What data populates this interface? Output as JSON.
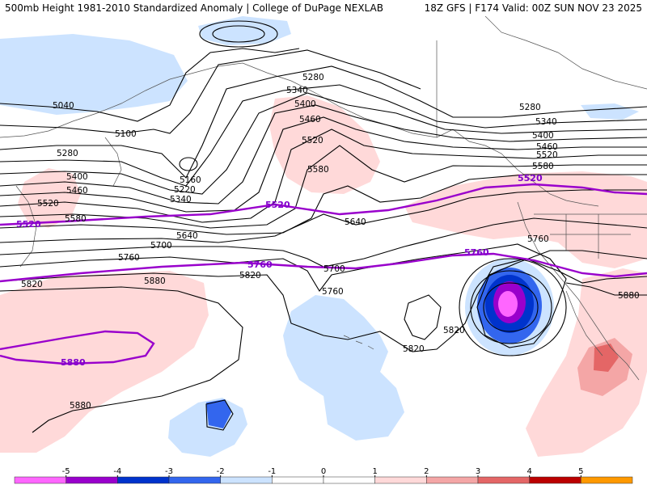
{
  "header": {
    "left": "500mb Height 1981-2010 Standardized Anomaly | College of DuPage NEXLAB",
    "right": "18Z GFS | F174 Valid: 00Z SUN NOV 23 2025"
  },
  "colors": {
    "neg5": "#ff66ff",
    "neg4": "#9900cc",
    "neg3": "#0033cc",
    "neg2": "#3366ee",
    "neg1": "#cce3ff",
    "pos1": "#ffd9d9",
    "pos2": "#f4a6a6",
    "pos3": "#e46666",
    "pos4": "#bb0000",
    "pos5": "#ff9900",
    "highlight_contour": "#9900cc"
  },
  "contour_labels": [
    {
      "id": "5040",
      "text": "5040"
    },
    {
      "id": "5100",
      "text": "5100"
    },
    {
      "id": "5160",
      "text": "5160"
    },
    {
      "id": "5220",
      "text": "5220"
    },
    {
      "id": "5280w",
      "text": "5280"
    },
    {
      "id": "5340w",
      "text": "5340"
    },
    {
      "id": "5400w",
      "text": "5400"
    },
    {
      "id": "5460w",
      "text": "5460"
    },
    {
      "id": "5520w",
      "text": "5520"
    },
    {
      "id": "5580w",
      "text": "5580"
    },
    {
      "id": "5280n",
      "text": "5280"
    },
    {
      "id": "5340n",
      "text": "5340"
    },
    {
      "id": "5400n",
      "text": "5400"
    },
    {
      "id": "5460n",
      "text": "5460"
    },
    {
      "id": "5520n",
      "text": "5520"
    },
    {
      "id": "5580n",
      "text": "5580"
    },
    {
      "id": "5640c",
      "text": "5640"
    },
    {
      "id": "5640w",
      "text": "5640"
    },
    {
      "id": "5700w",
      "text": "5700"
    },
    {
      "id": "5760w",
      "text": "5760"
    },
    {
      "id": "5820w",
      "text": "5820"
    },
    {
      "id": "5880w",
      "text": "5880"
    },
    {
      "id": "5700c",
      "text": "5700"
    },
    {
      "id": "5760c",
      "text": "5760"
    },
    {
      "id": "5820c",
      "text": "5820"
    },
    {
      "id": "5820t",
      "text": "5820"
    },
    {
      "id": "5820s",
      "text": "5820"
    },
    {
      "id": "5760e",
      "text": "5760"
    },
    {
      "id": "5880e",
      "text": "5880"
    },
    {
      "id": "5880sw",
      "text": "5880"
    },
    {
      "id": "5280e",
      "text": "5280"
    },
    {
      "id": "5340e",
      "text": "5340"
    },
    {
      "id": "5400e",
      "text": "5400"
    },
    {
      "id": "5460e",
      "text": "5460"
    },
    {
      "id": "5520e",
      "text": "5520"
    },
    {
      "id": "5580e",
      "text": "5580"
    }
  ],
  "highlight_labels": [
    {
      "id": "p5520w",
      "text": "5520"
    },
    {
      "id": "p5520c",
      "text": "5520"
    },
    {
      "id": "p5520e",
      "text": "5520"
    },
    {
      "id": "p5760c",
      "text": "5760"
    },
    {
      "id": "p5760e",
      "text": "5760"
    },
    {
      "id": "p5880",
      "text": "5880"
    }
  ],
  "legend": {
    "ticks": [
      "-5",
      "-4",
      "-3",
      "-2",
      "-1",
      "0",
      "1",
      "2",
      "3",
      "4",
      "5"
    ]
  }
}
